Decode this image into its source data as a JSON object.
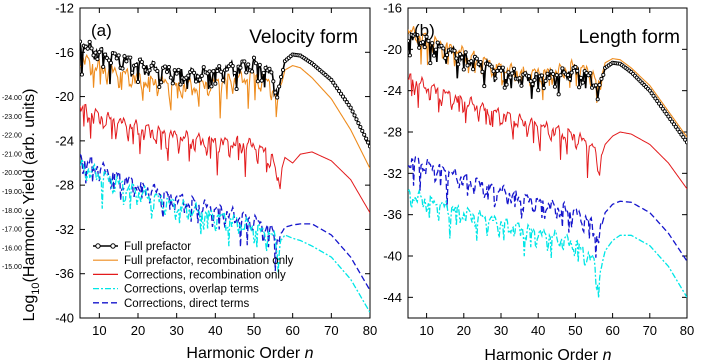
{
  "figure": {
    "ylabel": "Log",
    "ylabel_sub": "10",
    "ylabel_rest": "(Harmonic Yield (arb. units)",
    "ghost_ticks": [
      "-24.00",
      "-23.00",
      "-22.00",
      "-21.00",
      "-20.00",
      "-19.00",
      "-18.00",
      "-17.00",
      "-16.00",
      "-15.00"
    ]
  },
  "colors": {
    "full_prefactor": "#000000",
    "full_recomb": "#ee8c1e",
    "corr_recomb": "#e31a1c",
    "corr_overlap": "#00e6e6",
    "corr_direct": "#1515cc"
  },
  "chart_data": [
    {
      "type": "line",
      "panel_label": "(a)",
      "title": "Velocity form",
      "xlabel": "Harmonic Order ",
      "xlabel_var": "n",
      "xlim": [
        5,
        80
      ],
      "ylim": [
        -40,
        -12
      ],
      "xticks": [
        10,
        20,
        30,
        40,
        50,
        60,
        70,
        80
      ],
      "yticks": [
        -40,
        -36,
        -32,
        -28,
        -24,
        -20,
        -16,
        -12
      ],
      "legend": {
        "placement": "bottom-left",
        "entries": [
          "Full prefactor",
          "Full prefactor, recombination only",
          "Corrections, recombination only",
          "Corrections, overlap terms",
          "Corrections, direct terms"
        ]
      },
      "series": [
        {
          "name": "Full prefactor",
          "style": "black-circles",
          "x": [
            5,
            10,
            15,
            20,
            25,
            30,
            35,
            40,
            45,
            50,
            55,
            56,
            58,
            60,
            62,
            65,
            70,
            75,
            80
          ],
          "y": [
            -15.2,
            -16.0,
            -16.5,
            -17.0,
            -17.5,
            -17.8,
            -18.0,
            -17.7,
            -17.3,
            -17.0,
            -18.0,
            -20.0,
            -16.8,
            -16.2,
            -16.3,
            -17.0,
            -18.5,
            -21.0,
            -24.5
          ]
        },
        {
          "name": "Full prefactor, recombination only",
          "style": "orange-line",
          "x": [
            5,
            10,
            15,
            20,
            25,
            30,
            35,
            40,
            45,
            50,
            55,
            56,
            58,
            60,
            62,
            65,
            70,
            75,
            80
          ],
          "y": [
            -16.5,
            -17.3,
            -17.8,
            -18.3,
            -18.6,
            -19.0,
            -19.0,
            -18.7,
            -18.4,
            -18.1,
            -19.0,
            -20.5,
            -17.6,
            -17.2,
            -17.4,
            -18.3,
            -20.2,
            -23.0,
            -26.5
          ]
        },
        {
          "name": "Corrections, recombination only",
          "style": "red-line",
          "x": [
            5,
            10,
            15,
            20,
            25,
            30,
            35,
            40,
            45,
            50,
            55,
            56,
            58,
            60,
            62,
            65,
            70,
            75,
            80
          ],
          "y": [
            -21.0,
            -21.8,
            -22.3,
            -22.8,
            -23.2,
            -23.6,
            -23.9,
            -24.1,
            -24.2,
            -24.4,
            -25.5,
            -28.0,
            -25.5,
            -26.0,
            -25.2,
            -25.0,
            -25.8,
            -27.5,
            -30.5
          ]
        },
        {
          "name": "Corrections, overlap terms",
          "style": "cyan-dashdot",
          "x": [
            5,
            10,
            15,
            20,
            25,
            30,
            35,
            40,
            45,
            50,
            55,
            56,
            58,
            60,
            62,
            65,
            70,
            75,
            80
          ],
          "y": [
            -26.2,
            -27.0,
            -27.8,
            -28.6,
            -29.2,
            -29.8,
            -30.3,
            -30.8,
            -31.2,
            -31.8,
            -32.6,
            -33.5,
            -32.5,
            -32.8,
            -33.0,
            -33.5,
            -34.5,
            -36.5,
            -39.5
          ]
        },
        {
          "name": "Corrections, direct terms",
          "style": "blue-dashed",
          "x": [
            5,
            10,
            15,
            20,
            25,
            30,
            35,
            40,
            45,
            50,
            55,
            56,
            58,
            60,
            62,
            65,
            70,
            75,
            80
          ],
          "y": [
            -25.5,
            -26.4,
            -27.2,
            -28.0,
            -28.6,
            -29.2,
            -29.7,
            -30.2,
            -30.7,
            -31.2,
            -32.2,
            -33.0,
            -31.8,
            -31.6,
            -31.5,
            -31.5,
            -32.5,
            -34.5,
            -37.5
          ]
        }
      ]
    },
    {
      "type": "line",
      "panel_label": "(b)",
      "title": "Length form",
      "xlabel": "Harmonic Order ",
      "xlabel_var": "n",
      "xlim": [
        5,
        80
      ],
      "ylim": [
        -46,
        -16
      ],
      "xticks": [
        10,
        20,
        30,
        40,
        50,
        60,
        70,
        80
      ],
      "yticks": [
        -44,
        -40,
        -36,
        -32,
        -28,
        -24,
        -20,
        -16
      ],
      "series": [
        {
          "name": "Full prefactor",
          "style": "black-circles",
          "x": [
            5,
            10,
            15,
            20,
            25,
            30,
            35,
            40,
            45,
            50,
            55,
            56,
            58,
            60,
            62,
            65,
            70,
            75,
            80
          ],
          "y": [
            -18.5,
            -19.3,
            -20.0,
            -20.7,
            -21.4,
            -22.1,
            -22.6,
            -22.7,
            -22.5,
            -22.0,
            -22.8,
            -24.5,
            -21.8,
            -21.3,
            -21.4,
            -22.2,
            -24.0,
            -26.5,
            -29.0
          ]
        },
        {
          "name": "Full prefactor, recombination only",
          "style": "orange-line",
          "x": [
            5,
            10,
            15,
            20,
            25,
            30,
            35,
            40,
            45,
            50,
            55,
            56,
            58,
            60,
            62,
            65,
            70,
            75,
            80
          ],
          "y": [
            -18.2,
            -19.0,
            -19.7,
            -20.4,
            -21.1,
            -21.8,
            -22.2,
            -22.3,
            -22.1,
            -21.6,
            -22.4,
            -24.0,
            -21.3,
            -20.9,
            -21.0,
            -21.8,
            -23.5,
            -26.0,
            -28.5
          ]
        },
        {
          "name": "Corrections, recombination only",
          "style": "red-line",
          "x": [
            5,
            10,
            15,
            20,
            25,
            30,
            35,
            40,
            45,
            50,
            55,
            56,
            58,
            60,
            62,
            65,
            70,
            75,
            80
          ],
          "y": [
            -22.8,
            -23.6,
            -24.3,
            -25.0,
            -25.7,
            -26.3,
            -26.9,
            -27.4,
            -27.9,
            -28.4,
            -29.5,
            -31.5,
            -29.2,
            -28.4,
            -28.0,
            -28.2,
            -29.2,
            -31.0,
            -33.5
          ]
        },
        {
          "name": "Corrections, overlap terms",
          "style": "cyan-dashdot",
          "x": [
            5,
            10,
            15,
            20,
            25,
            30,
            35,
            40,
            45,
            50,
            55,
            56,
            58,
            60,
            62,
            65,
            70,
            75,
            80
          ],
          "y": [
            -34.0,
            -34.6,
            -35.2,
            -35.8,
            -36.3,
            -36.8,
            -37.3,
            -37.8,
            -38.2,
            -38.8,
            -40.5,
            -42.5,
            -39.5,
            -38.5,
            -38.0,
            -38.0,
            -39.0,
            -41.0,
            -44.0
          ]
        },
        {
          "name": "Corrections, direct terms",
          "style": "blue-dashed",
          "x": [
            5,
            10,
            15,
            20,
            25,
            30,
            35,
            40,
            45,
            50,
            55,
            56,
            58,
            60,
            62,
            65,
            70,
            75,
            80
          ],
          "y": [
            -30.5,
            -31.2,
            -31.8,
            -32.5,
            -33.1,
            -33.7,
            -34.3,
            -34.8,
            -35.3,
            -35.8,
            -37.0,
            -38.5,
            -35.8,
            -35.0,
            -34.7,
            -34.8,
            -35.8,
            -37.8,
            -40.5
          ]
        }
      ]
    }
  ]
}
